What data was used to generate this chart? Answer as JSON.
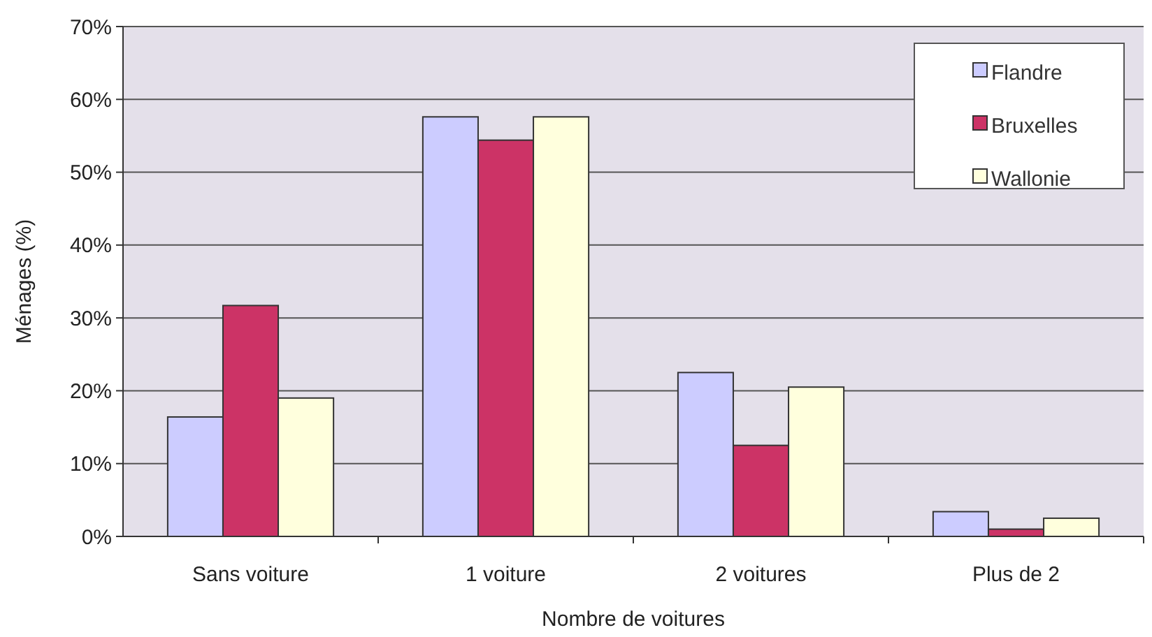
{
  "chart_data": {
    "type": "bar",
    "xlabel": "Nombre de voitures",
    "ylabel": "Ménages (%)",
    "categories": [
      "Sans voiture",
      "1 voiture",
      "2 voitures",
      "Plus de 2"
    ],
    "series": [
      {
        "name": "Flandre",
        "color": "#ccccff",
        "values": [
          16.4,
          57.6,
          22.5,
          3.4
        ]
      },
      {
        "name": "Bruxelles",
        "color": "#cc3366",
        "values": [
          31.7,
          54.4,
          12.5,
          1.0
        ]
      },
      {
        "name": "Wallonie",
        "color": "#ffffdd",
        "values": [
          19.0,
          57.6,
          20.5,
          2.5
        ]
      }
    ],
    "ylim": [
      0,
      70
    ],
    "yticks": [
      {
        "value": 0,
        "label": "0%"
      },
      {
        "value": 10,
        "label": "10%"
      },
      {
        "value": 20,
        "label": "20%"
      },
      {
        "value": 30,
        "label": "30%"
      },
      {
        "value": 40,
        "label": "40%"
      },
      {
        "value": 50,
        "label": "50%"
      },
      {
        "value": 60,
        "label": "60%"
      },
      {
        "value": 70,
        "label": "70%"
      }
    ],
    "grid": "y",
    "legend": "top right"
  }
}
